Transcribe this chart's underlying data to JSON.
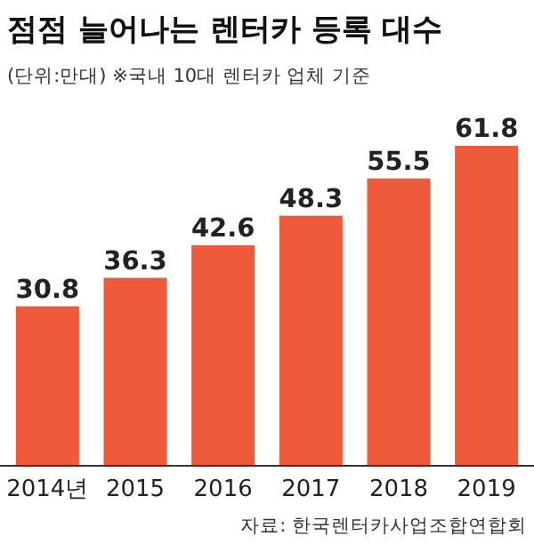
{
  "chart_data": {
    "type": "bar",
    "title": "점점 늘어나는 렌터카 등록 대수",
    "subtitle": "(단위:만대) ※국내 10대 렌터카 업체 기준",
    "categories": [
      "2014년",
      "2015",
      "2016",
      "2017",
      "2018",
      "2019"
    ],
    "values": [
      30.8,
      36.3,
      42.6,
      48.3,
      55.5,
      61.8
    ],
    "color": "#ee5a3a",
    "data_labels": true,
    "annotations": [
      "자료: 한국렌터카사업조합연합회"
    ]
  }
}
